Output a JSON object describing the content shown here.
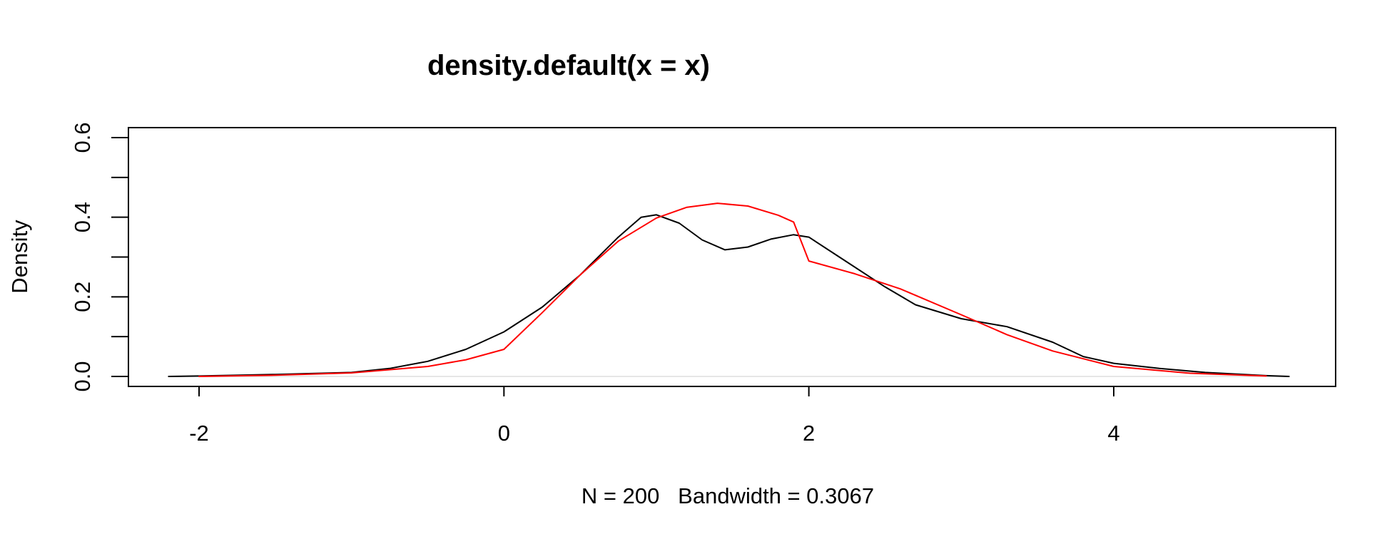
{
  "chart_data": {
    "type": "line",
    "title": "density.default(x = x)",
    "xlabel": "N = 200   Bandwidth = 0.3067",
    "ylabel": "Density",
    "xlim": [
      -2.2,
      5.15
    ],
    "ylim": [
      0,
      0.6
    ],
    "x_ticks": [
      -2,
      0,
      2,
      4
    ],
    "y_ticks": [
      0.0,
      0.1,
      0.2,
      0.3,
      0.4,
      0.5,
      0.6
    ],
    "x_tick_labels": [
      "-2",
      "0",
      "2",
      "4"
    ],
    "y_tick_labels": [
      "0.0",
      "",
      "0.2",
      "",
      "0.4",
      "",
      "0.6"
    ],
    "grid": false,
    "series": [
      {
        "color": "#000000",
        "x": [
          -2.2,
          -2.0,
          -1.5,
          -1.0,
          -0.75,
          -0.5,
          -0.25,
          0.0,
          0.25,
          0.5,
          0.75,
          0.9,
          1.0,
          1.15,
          1.3,
          1.45,
          1.6,
          1.75,
          1.9,
          2.0,
          2.2,
          2.5,
          2.7,
          3.0,
          3.3,
          3.6,
          3.8,
          4.0,
          4.3,
          4.6,
          5.0,
          5.15
        ],
        "y": [
          0.0,
          0.001,
          0.005,
          0.01,
          0.02,
          0.038,
          0.068,
          0.112,
          0.174,
          0.255,
          0.35,
          0.4,
          0.406,
          0.385,
          0.343,
          0.318,
          0.325,
          0.345,
          0.356,
          0.35,
          0.3,
          0.225,
          0.18,
          0.145,
          0.125,
          0.086,
          0.05,
          0.033,
          0.02,
          0.01,
          0.002,
          0.0
        ]
      },
      {
        "color": "#ff0000",
        "x": [
          -2.0,
          -1.5,
          -1.0,
          -0.5,
          -0.25,
          0.0,
          0.25,
          0.5,
          0.75,
          1.0,
          1.2,
          1.4,
          1.6,
          1.8,
          1.9,
          2.0,
          2.3,
          2.6,
          3.0,
          3.3,
          3.6,
          4.0,
          4.5,
          5.0
        ],
        "y": [
          0.0,
          0.003,
          0.009,
          0.025,
          0.042,
          0.068,
          0.16,
          0.255,
          0.34,
          0.398,
          0.425,
          0.435,
          0.428,
          0.405,
          0.388,
          0.29,
          0.258,
          0.22,
          0.155,
          0.105,
          0.064,
          0.025,
          0.008,
          0.001
        ]
      }
    ]
  }
}
